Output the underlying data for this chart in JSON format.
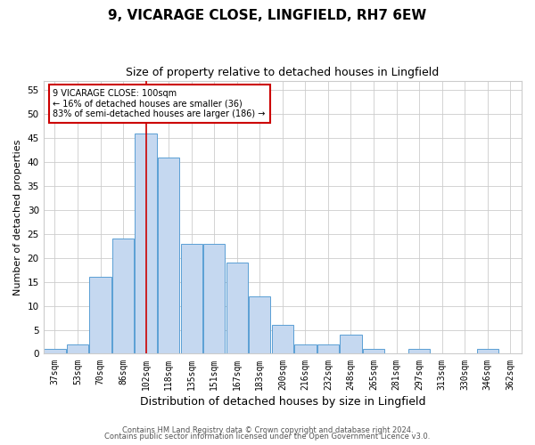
{
  "title": "9, VICARAGE CLOSE, LINGFIELD, RH7 6EW",
  "subtitle": "Size of property relative to detached houses in Lingfield",
  "xlabel": "Distribution of detached houses by size in Lingfield",
  "ylabel": "Number of detached properties",
  "categories": [
    "37sqm",
    "53sqm",
    "70sqm",
    "86sqm",
    "102sqm",
    "118sqm",
    "135sqm",
    "151sqm",
    "167sqm",
    "183sqm",
    "200sqm",
    "216sqm",
    "232sqm",
    "248sqm",
    "265sqm",
    "281sqm",
    "297sqm",
    "313sqm",
    "330sqm",
    "346sqm",
    "362sqm"
  ],
  "values": [
    1,
    2,
    16,
    24,
    46,
    41,
    23,
    23,
    19,
    12,
    6,
    2,
    2,
    4,
    1,
    0,
    1,
    0,
    0,
    1,
    0
  ],
  "bar_color": "#c5d8f0",
  "bar_edge_color": "#5a9fd4",
  "highlight_index": 4,
  "highlight_line_color": "#cc0000",
  "ylim": [
    0,
    57
  ],
  "yticks": [
    0,
    5,
    10,
    15,
    20,
    25,
    30,
    35,
    40,
    45,
    50,
    55
  ],
  "annotation_text": "9 VICARAGE CLOSE: 100sqm\n← 16% of detached houses are smaller (36)\n83% of semi-detached houses are larger (186) →",
  "annotation_box_color": "#ffffff",
  "annotation_box_edge": "#cc0000",
  "footer_line1": "Contains HM Land Registry data © Crown copyright and database right 2024.",
  "footer_line2": "Contains public sector information licensed under the Open Government Licence v3.0.",
  "background_color": "#ffffff",
  "grid_color": "#cccccc",
  "title_fontsize": 11,
  "subtitle_fontsize": 9,
  "ylabel_fontsize": 8,
  "xlabel_fontsize": 9,
  "tick_fontsize": 7,
  "ann_fontsize": 7,
  "footer_fontsize": 6
}
